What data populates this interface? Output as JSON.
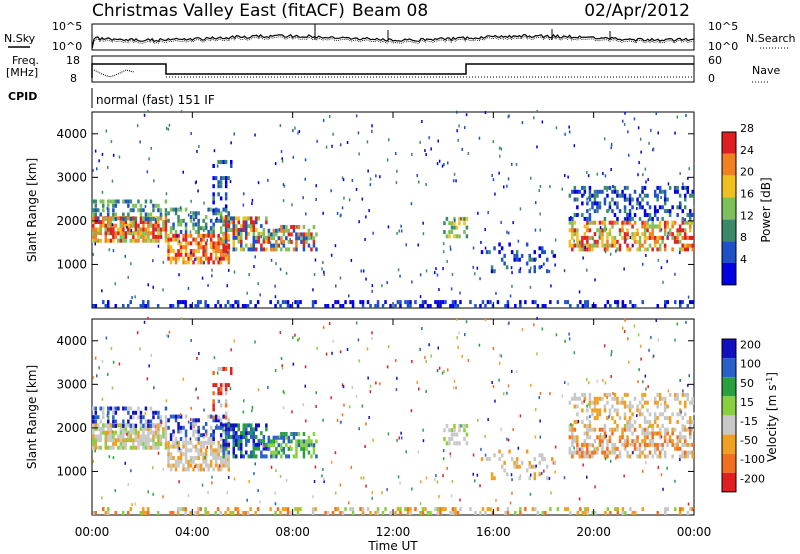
{
  "header": {
    "title": "Christmas Valley East (fitACF)",
    "beam": "Beam 08",
    "date": "02/Apr/2012"
  },
  "params": {
    "nsky_label": "N.Sky",
    "nsky_ticks": [
      "10^5",
      "10^0"
    ],
    "nsearch_label": "N.Search",
    "freq_label_line1": "Freq.",
    "freq_label_line2": "[MHz]",
    "freq_ticks": [
      "18",
      "8"
    ],
    "nave_label": "Nave",
    "nave_ticks": [
      "60",
      "0"
    ],
    "cpid_label": "CPID",
    "cpid_value": "normal (fast) 151 IF"
  },
  "chart_data": [
    {
      "type": "heatmap",
      "name": "power",
      "ylabel": "Slant Range [km]",
      "yticks": [
        "1000",
        "2000",
        "3000",
        "4000"
      ],
      "ylim": [
        0,
        4500
      ],
      "colorbar_label": "Power [dB]",
      "colorbar_ticks": [
        "4",
        "8",
        "12",
        "16",
        "20",
        "24",
        "28"
      ],
      "colors": [
        "#0000e0",
        "#1e50c8",
        "#3a8a6a",
        "#7fc05a",
        "#f0c020",
        "#f08020",
        "#e02020"
      ]
    },
    {
      "type": "heatmap",
      "name": "velocity",
      "ylabel": "Slant Range [km]",
      "yticks": [
        "1000",
        "2000",
        "3000",
        "4000"
      ],
      "ylim": [
        0,
        4500
      ],
      "colorbar_label": "Velocity [m s^-1]",
      "colorbar_ticks": [
        "200",
        "100",
        "50",
        "15",
        "-15",
        "-50",
        "-100",
        "-200"
      ],
      "colors": [
        "#1010c0",
        "#2860c8",
        "#28a040",
        "#88d040",
        "#c8c8c8",
        "#f0a020",
        "#f07020",
        "#e02020"
      ]
    }
  ],
  "xaxis": {
    "label": "Time UT",
    "ticks": [
      "00:00",
      "04:00",
      "08:00",
      "12:00",
      "16:00",
      "20:00",
      "00:00"
    ]
  }
}
